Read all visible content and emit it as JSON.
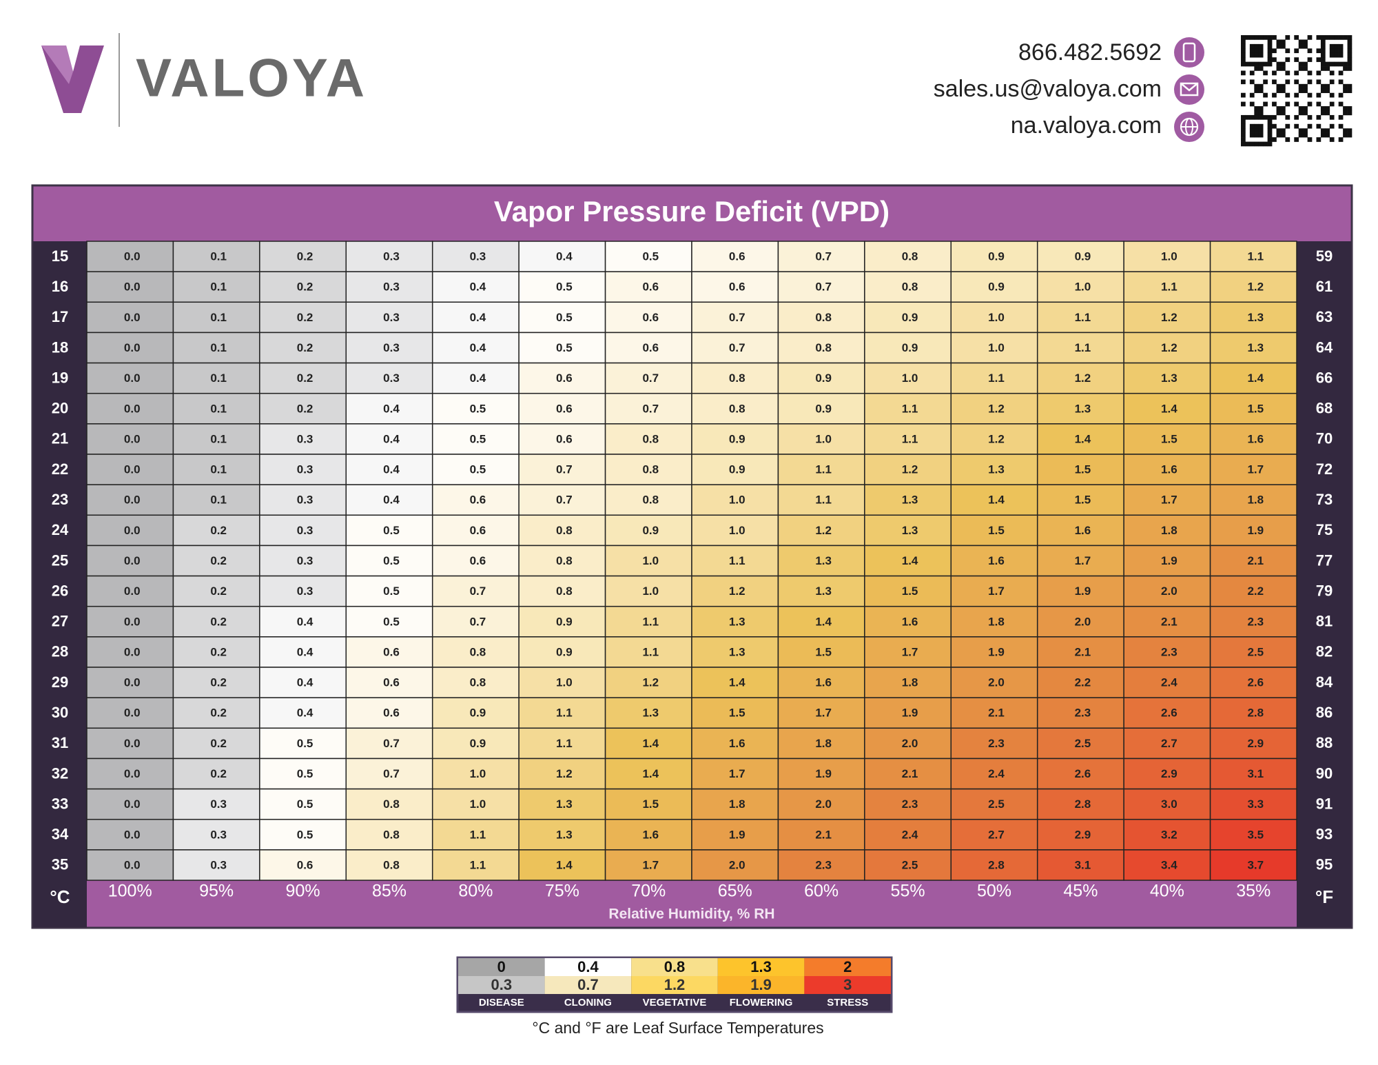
{
  "header": {
    "brand": "VALOYA",
    "phone": "866.482.5692",
    "email": "sales.us@valoya.com",
    "website": "na.valoya.com"
  },
  "table": {
    "title": "Vapor Pressure Deficit (VPD)",
    "celsius_label": "°C",
    "fahrenheit_label": "°F",
    "x_label": "Relative Humidity, % RH",
    "humidity": [
      "100%",
      "95%",
      "90%",
      "85%",
      "80%",
      "75%",
      "70%",
      "65%",
      "60%",
      "55%",
      "50%",
      "45%",
      "40%",
      "35%"
    ],
    "rows": [
      {
        "c": "15",
        "f": "59",
        "values": [
          "0.0",
          "0.1",
          "0.2",
          "0.3",
          "0.3",
          "0.4",
          "0.5",
          "0.6",
          "0.7",
          "0.8",
          "0.9",
          "0.9",
          "1.0",
          "1.1"
        ]
      },
      {
        "c": "16",
        "f": "61",
        "values": [
          "0.0",
          "0.1",
          "0.2",
          "0.3",
          "0.4",
          "0.5",
          "0.6",
          "0.6",
          "0.7",
          "0.8",
          "0.9",
          "1.0",
          "1.1",
          "1.2"
        ]
      },
      {
        "c": "17",
        "f": "63",
        "values": [
          "0.0",
          "0.1",
          "0.2",
          "0.3",
          "0.4",
          "0.5",
          "0.6",
          "0.7",
          "0.8",
          "0.9",
          "1.0",
          "1.1",
          "1.2",
          "1.3"
        ]
      },
      {
        "c": "18",
        "f": "64",
        "values": [
          "0.0",
          "0.1",
          "0.2",
          "0.3",
          "0.4",
          "0.5",
          "0.6",
          "0.7",
          "0.8",
          "0.9",
          "1.0",
          "1.1",
          "1.2",
          "1.3"
        ]
      },
      {
        "c": "19",
        "f": "66",
        "values": [
          "0.0",
          "0.1",
          "0.2",
          "0.3",
          "0.4",
          "0.6",
          "0.7",
          "0.8",
          "0.9",
          "1.0",
          "1.1",
          "1.2",
          "1.3",
          "1.4"
        ]
      },
      {
        "c": "20",
        "f": "68",
        "values": [
          "0.0",
          "0.1",
          "0.2",
          "0.4",
          "0.5",
          "0.6",
          "0.7",
          "0.8",
          "0.9",
          "1.1",
          "1.2",
          "1.3",
          "1.4",
          "1.5"
        ]
      },
      {
        "c": "21",
        "f": "70",
        "values": [
          "0.0",
          "0.1",
          "0.3",
          "0.4",
          "0.5",
          "0.6",
          "0.8",
          "0.9",
          "1.0",
          "1.1",
          "1.2",
          "1.4",
          "1.5",
          "1.6"
        ]
      },
      {
        "c": "22",
        "f": "72",
        "values": [
          "0.0",
          "0.1",
          "0.3",
          "0.4",
          "0.5",
          "0.7",
          "0.8",
          "0.9",
          "1.1",
          "1.2",
          "1.3",
          "1.5",
          "1.6",
          "1.7"
        ]
      },
      {
        "c": "23",
        "f": "73",
        "values": [
          "0.0",
          "0.1",
          "0.3",
          "0.4",
          "0.6",
          "0.7",
          "0.8",
          "1.0",
          "1.1",
          "1.3",
          "1.4",
          "1.5",
          "1.7",
          "1.8"
        ]
      },
      {
        "c": "24",
        "f": "75",
        "values": [
          "0.0",
          "0.2",
          "0.3",
          "0.5",
          "0.6",
          "0.8",
          "0.9",
          "1.0",
          "1.2",
          "1.3",
          "1.5",
          "1.6",
          "1.8",
          "1.9"
        ]
      },
      {
        "c": "25",
        "f": "77",
        "values": [
          "0.0",
          "0.2",
          "0.3",
          "0.5",
          "0.6",
          "0.8",
          "1.0",
          "1.1",
          "1.3",
          "1.4",
          "1.6",
          "1.7",
          "1.9",
          "2.1"
        ]
      },
      {
        "c": "26",
        "f": "79",
        "values": [
          "0.0",
          "0.2",
          "0.3",
          "0.5",
          "0.7",
          "0.8",
          "1.0",
          "1.2",
          "1.3",
          "1.5",
          "1.7",
          "1.9",
          "2.0",
          "2.2"
        ]
      },
      {
        "c": "27",
        "f": "81",
        "values": [
          "0.0",
          "0.2",
          "0.4",
          "0.5",
          "0.7",
          "0.9",
          "1.1",
          "1.3",
          "1.4",
          "1.6",
          "1.8",
          "2.0",
          "2.1",
          "2.3"
        ]
      },
      {
        "c": "28",
        "f": "82",
        "values": [
          "0.0",
          "0.2",
          "0.4",
          "0.6",
          "0.8",
          "0.9",
          "1.1",
          "1.3",
          "1.5",
          "1.7",
          "1.9",
          "2.1",
          "2.3",
          "2.5"
        ]
      },
      {
        "c": "29",
        "f": "84",
        "values": [
          "0.0",
          "0.2",
          "0.4",
          "0.6",
          "0.8",
          "1.0",
          "1.2",
          "1.4",
          "1.6",
          "1.8",
          "2.0",
          "2.2",
          "2.4",
          "2.6"
        ]
      },
      {
        "c": "30",
        "f": "86",
        "values": [
          "0.0",
          "0.2",
          "0.4",
          "0.6",
          "0.9",
          "1.1",
          "1.3",
          "1.5",
          "1.7",
          "1.9",
          "2.1",
          "2.3",
          "2.6",
          "2.8"
        ]
      },
      {
        "c": "31",
        "f": "88",
        "values": [
          "0.0",
          "0.2",
          "0.5",
          "0.7",
          "0.9",
          "1.1",
          "1.4",
          "1.6",
          "1.8",
          "2.0",
          "2.3",
          "2.5",
          "2.7",
          "2.9"
        ]
      },
      {
        "c": "32",
        "f": "90",
        "values": [
          "0.0",
          "0.2",
          "0.5",
          "0.7",
          "1.0",
          "1.2",
          "1.4",
          "1.7",
          "1.9",
          "2.1",
          "2.4",
          "2.6",
          "2.9",
          "3.1"
        ]
      },
      {
        "c": "33",
        "f": "91",
        "values": [
          "0.0",
          "0.3",
          "0.5",
          "0.8",
          "1.0",
          "1.3",
          "1.5",
          "1.8",
          "2.0",
          "2.3",
          "2.5",
          "2.8",
          "3.0",
          "3.3"
        ]
      },
      {
        "c": "34",
        "f": "93",
        "values": [
          "0.0",
          "0.3",
          "0.5",
          "0.8",
          "1.1",
          "1.3",
          "1.6",
          "1.9",
          "2.1",
          "2.4",
          "2.7",
          "2.9",
          "3.2",
          "3.5"
        ]
      },
      {
        "c": "35",
        "f": "95",
        "values": [
          "0.0",
          "0.3",
          "0.6",
          "0.8",
          "1.1",
          "1.4",
          "1.7",
          "2.0",
          "2.3",
          "2.5",
          "2.8",
          "3.1",
          "3.4",
          "3.7"
        ]
      }
    ]
  },
  "legend": {
    "items": [
      {
        "low": "0",
        "high": "0.3",
        "label": "DISEASE"
      },
      {
        "low": "0.4",
        "high": "0.7",
        "label": "CLONING"
      },
      {
        "low": "0.8",
        "high": "1.2",
        "label": "VEGETATIVE"
      },
      {
        "low": "1.3",
        "high": "1.9",
        "label": "FLOWERING"
      },
      {
        "low": "2",
        "high": "3",
        "label": "STRESS"
      }
    ]
  },
  "footnote": "°C and °F are Leaf Surface Temperatures"
}
